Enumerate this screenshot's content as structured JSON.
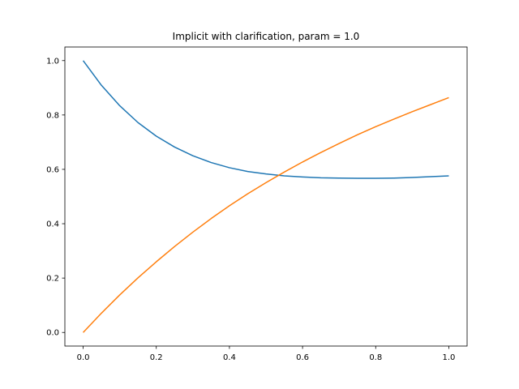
{
  "chart_data": {
    "type": "line",
    "title": "Implicit with clarification, param = 1.0",
    "xlabel": "",
    "ylabel": "",
    "xlim": [
      -0.05,
      1.05
    ],
    "ylim": [
      -0.05,
      1.05
    ],
    "xticks": [
      0.0,
      0.2,
      0.4,
      0.6,
      0.8,
      1.0
    ],
    "xtick_labels": [
      "0.0",
      "0.2",
      "0.4",
      "0.6",
      "0.8",
      "1.0"
    ],
    "yticks": [
      0.0,
      0.2,
      0.4,
      0.6,
      0.8,
      1.0
    ],
    "ytick_labels": [
      "0.0",
      "0.2",
      "0.4",
      "0.6",
      "0.8",
      "1.0"
    ],
    "grid": false,
    "legend": "none",
    "x": [
      0.0,
      0.05,
      0.1,
      0.15,
      0.2,
      0.25,
      0.3,
      0.35,
      0.4,
      0.45,
      0.5,
      0.55,
      0.6,
      0.65,
      0.7,
      0.75,
      0.8,
      0.85,
      0.9,
      0.95,
      1.0
    ],
    "series": [
      {
        "color": "#1f77b4",
        "values": [
          1.0,
          0.909,
          0.834,
          0.772,
          0.722,
          0.682,
          0.65,
          0.625,
          0.606,
          0.592,
          0.583,
          0.576,
          0.572,
          0.569,
          0.568,
          0.567,
          0.567,
          0.568,
          0.57,
          0.573,
          0.576
        ]
      },
      {
        "color": "#ff7f0e",
        "values": [
          0.0,
          0.071,
          0.138,
          0.201,
          0.26,
          0.316,
          0.369,
          0.419,
          0.466,
          0.51,
          0.551,
          0.59,
          0.627,
          0.662,
          0.695,
          0.727,
          0.757,
          0.785,
          0.812,
          0.838,
          0.864
        ]
      }
    ]
  }
}
